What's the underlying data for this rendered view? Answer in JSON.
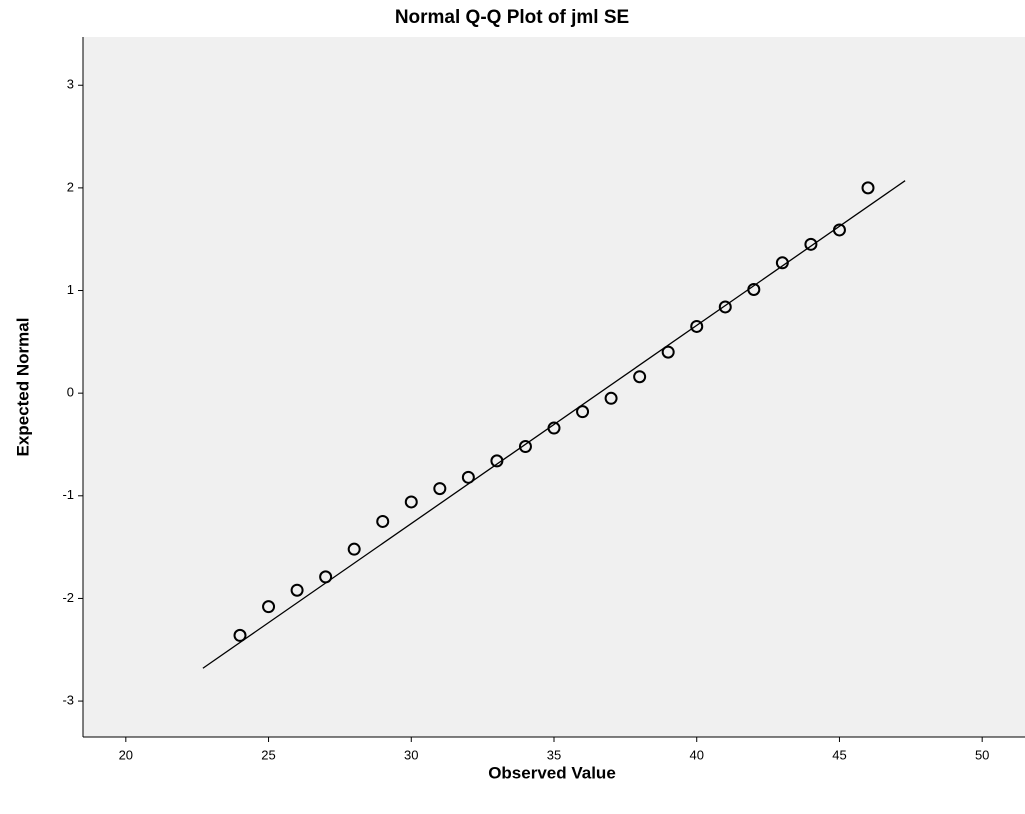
{
  "chart_data": {
    "type": "scatter",
    "title": "Normal Q-Q Plot of jml SE",
    "x_label": "Observed Value",
    "y_label": "Expected Normal",
    "x": [
      24,
      25,
      26,
      27,
      28,
      29,
      30,
      31,
      32,
      33,
      34,
      35,
      36,
      37,
      38,
      39,
      40,
      41,
      42,
      43,
      44,
      45,
      46
    ],
    "values": [
      -2.36,
      -2.08,
      -1.92,
      -1.79,
      -1.52,
      -1.25,
      -1.06,
      -0.93,
      -0.82,
      -0.66,
      -0.52,
      -0.34,
      -0.18,
      -0.05,
      0.16,
      0.4,
      0.65,
      0.84,
      1.01,
      1.27,
      1.45,
      1.59,
      2.0
    ],
    "reference_line": {
      "x": [
        22.7,
        47.3
      ],
      "y": [
        -2.68,
        2.07
      ]
    },
    "xlim": [
      18.5,
      51.5
    ],
    "ylim": [
      -3.35,
      3.47
    ],
    "xticks": [
      20,
      25,
      30,
      35,
      40,
      45,
      50
    ],
    "yticks": [
      -3,
      -2,
      -1,
      0,
      1,
      2,
      3
    ],
    "color": "#000000",
    "background": "#f0f0f0"
  }
}
